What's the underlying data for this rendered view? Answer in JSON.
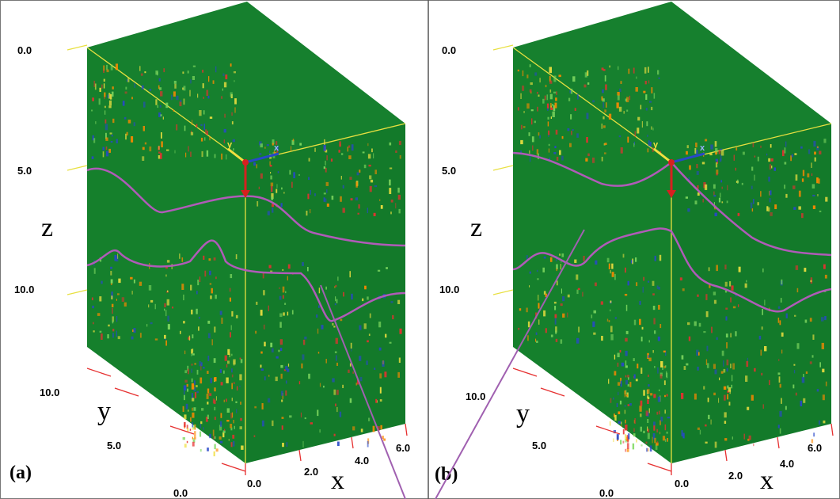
{
  "figure": {
    "panels": [
      {
        "id": "a",
        "label": "(a)",
        "z_axis": {
          "letter": "z",
          "ticks": [
            "0.0",
            "5.0",
            "10.0"
          ]
        },
        "y_axis": {
          "letter": "y",
          "ticks": [
            "10.0",
            "5.0",
            "0.0"
          ]
        },
        "x_axis": {
          "letter": "x",
          "ticks": [
            "0.0",
            "2.0",
            "4.0",
            "6.0"
          ]
        },
        "axes_glyph": {
          "y_label": "y",
          "x_label": "x"
        }
      },
      {
        "id": "b",
        "label": "(b)",
        "z_axis": {
          "letter": "z",
          "ticks": [
            "0.0",
            "5.0",
            "10.0"
          ]
        },
        "y_axis": {
          "letter": "y",
          "ticks": [
            "10.0",
            "5.0",
            "0.0"
          ]
        },
        "x_axis": {
          "letter": "x",
          "ticks": [
            "0.0",
            "2.0",
            "4.0",
            "6.0"
          ]
        },
        "axes_glyph": {
          "y_label": "y",
          "x_label": "x"
        }
      }
    ],
    "colors": {
      "volume_top": "#16802e",
      "volume_front": "#15802c",
      "volume_side": "#137a2a",
      "horizon_line": "#b05bb8",
      "cube_edge": "#e8e040",
      "y_ticks": "#e63030",
      "arrow_red": "#d62020",
      "arrow_blue": "#2848c8",
      "arrow_yellow": "#f0e040",
      "divider": "#555555",
      "anomaly_colors": [
        "#e63030",
        "#2848c8",
        "#f0e040",
        "#7fd860",
        "#ff8800"
      ]
    }
  }
}
